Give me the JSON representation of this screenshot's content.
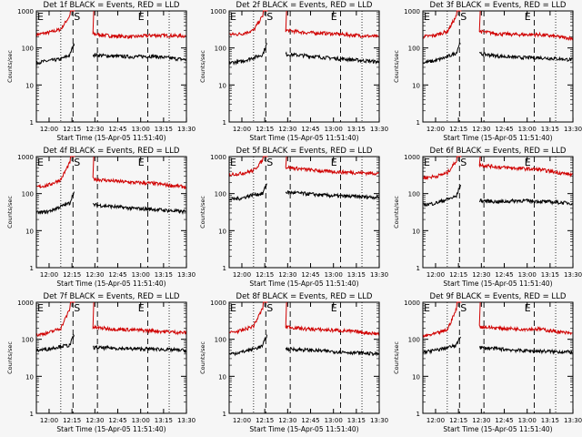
{
  "chart_data": {
    "type": "line",
    "layout": "3x3 grid of log-scale time-series panels",
    "x_tick_labels": [
      "12:00",
      "12:15",
      "12:30",
      "12:45",
      "13:00",
      "13:15",
      "13:30"
    ],
    "x_range_minutes_after_start": [
      0,
      98.3
    ],
    "xlabel": "Start Time (15-Apr-05 11:51:40)",
    "ylabel": "Counts/sec",
    "y_scale": "log",
    "y_range": [
      1,
      1000
    ],
    "y_tick_labels": [
      "1",
      "10",
      "100",
      "1000"
    ],
    "series_legend": "BLACK = Events, RED = LLD",
    "marker_labels": [
      "E",
      "S",
      "E"
    ],
    "marker_time_minutes_after_start": [
      0,
      24,
      66
    ],
    "dotted_line_minutes": [
      16,
      87
    ],
    "saturation_gap_minutes": [
      26,
      37
    ],
    "panels": [
      {
        "title": "Det 1f BLACK = Events, RED = LLD",
        "series": [
          {
            "name": "LLD",
            "color": "#d00000",
            "values": [
              230,
              260,
              320,
              1000,
              240,
              210,
              200,
              220,
              210
            ]
          },
          {
            "name": "Events",
            "color": "#000000",
            "values": [
              40,
              45,
              50,
              70,
              65,
              60,
              58,
              60,
              48
            ]
          }
        ]
      },
      {
        "title": "Det 2f BLACK = Events, RED = LLD",
        "series": [
          {
            "name": "LLD",
            "color": "#d00000",
            "values": [
              230,
              240,
              300,
              1000,
              300,
              260,
              250,
              230,
              200
            ]
          },
          {
            "name": "Events",
            "color": "#000000",
            "values": [
              40,
              43,
              55,
              70,
              68,
              62,
              55,
              50,
              42
            ]
          }
        ]
      },
      {
        "title": "Det 3f BLACK = Events, RED = LLD",
        "series": [
          {
            "name": "LLD",
            "color": "#d00000",
            "values": [
              200,
              220,
              280,
              1000,
              280,
              240,
              230,
              230,
              180
            ]
          },
          {
            "name": "Events",
            "color": "#000000",
            "values": [
              40,
              45,
              58,
              80,
              70,
              60,
              55,
              55,
              48
            ]
          }
        ]
      },
      {
        "title": "Det 4f BLACK = Events, RED = LLD",
        "series": [
          {
            "name": "LLD",
            "color": "#d00000",
            "values": [
              150,
              170,
              240,
              1000,
              250,
              220,
              200,
              190,
              150
            ]
          },
          {
            "name": "Events",
            "color": "#000000",
            "values": [
              30,
              33,
              45,
              60,
              50,
              45,
              40,
              38,
              32
            ]
          }
        ]
      },
      {
        "title": "Det 5f BLACK = Events, RED = LLD",
        "series": [
          {
            "name": "LLD",
            "color": "#d00000",
            "values": [
              330,
              350,
              420,
              1000,
              520,
              450,
              400,
              380,
              350
            ]
          },
          {
            "name": "Events",
            "color": "#000000",
            "values": [
              70,
              75,
              95,
              100,
              110,
              100,
              90,
              85,
              80
            ]
          }
        ]
      },
      {
        "title": "Det 6f BLACK = Events, RED = LLD",
        "series": [
          {
            "name": "LLD",
            "color": "#d00000",
            "values": [
              270,
              290,
              360,
              1000,
              600,
              520,
              480,
              450,
              320
            ]
          },
          {
            "name": "Events",
            "color": "#000000",
            "values": [
              50,
              55,
              70,
              90,
              65,
              60,
              65,
              62,
              55
            ]
          }
        ]
      },
      {
        "title": "Det 7f BLACK = Events, RED = LLD",
        "series": [
          {
            "name": "LLD",
            "color": "#d00000",
            "values": [
              130,
              150,
              200,
              1000,
              210,
              190,
              180,
              170,
              150
            ]
          },
          {
            "name": "Events",
            "color": "#000000",
            "values": [
              50,
              55,
              65,
              70,
              60,
              58,
              55,
              55,
              50
            ]
          }
        ]
      },
      {
        "title": "Det 8f BLACK = Events, RED = LLD",
        "series": [
          {
            "name": "LLD",
            "color": "#d00000",
            "values": [
              150,
              170,
              230,
              1000,
              220,
              190,
              180,
              170,
              140
            ]
          },
          {
            "name": "Events",
            "color": "#000000",
            "values": [
              40,
              45,
              55,
              70,
              55,
              52,
              48,
              45,
              40
            ]
          }
        ]
      },
      {
        "title": "Det 9f BLACK = Events, RED = LLD",
        "series": [
          {
            "name": "LLD",
            "color": "#d00000",
            "values": [
              120,
              140,
              180,
              1000,
              220,
              200,
              190,
              190,
              140
            ]
          },
          {
            "name": "Events",
            "color": "#000000",
            "values": [
              45,
              50,
              60,
              70,
              60,
              55,
              50,
              48,
              45
            ]
          }
        ]
      }
    ],
    "sample_minutes": [
      0,
      8,
      16,
      24,
      37,
      50,
      63,
      76,
      98.3
    ]
  }
}
